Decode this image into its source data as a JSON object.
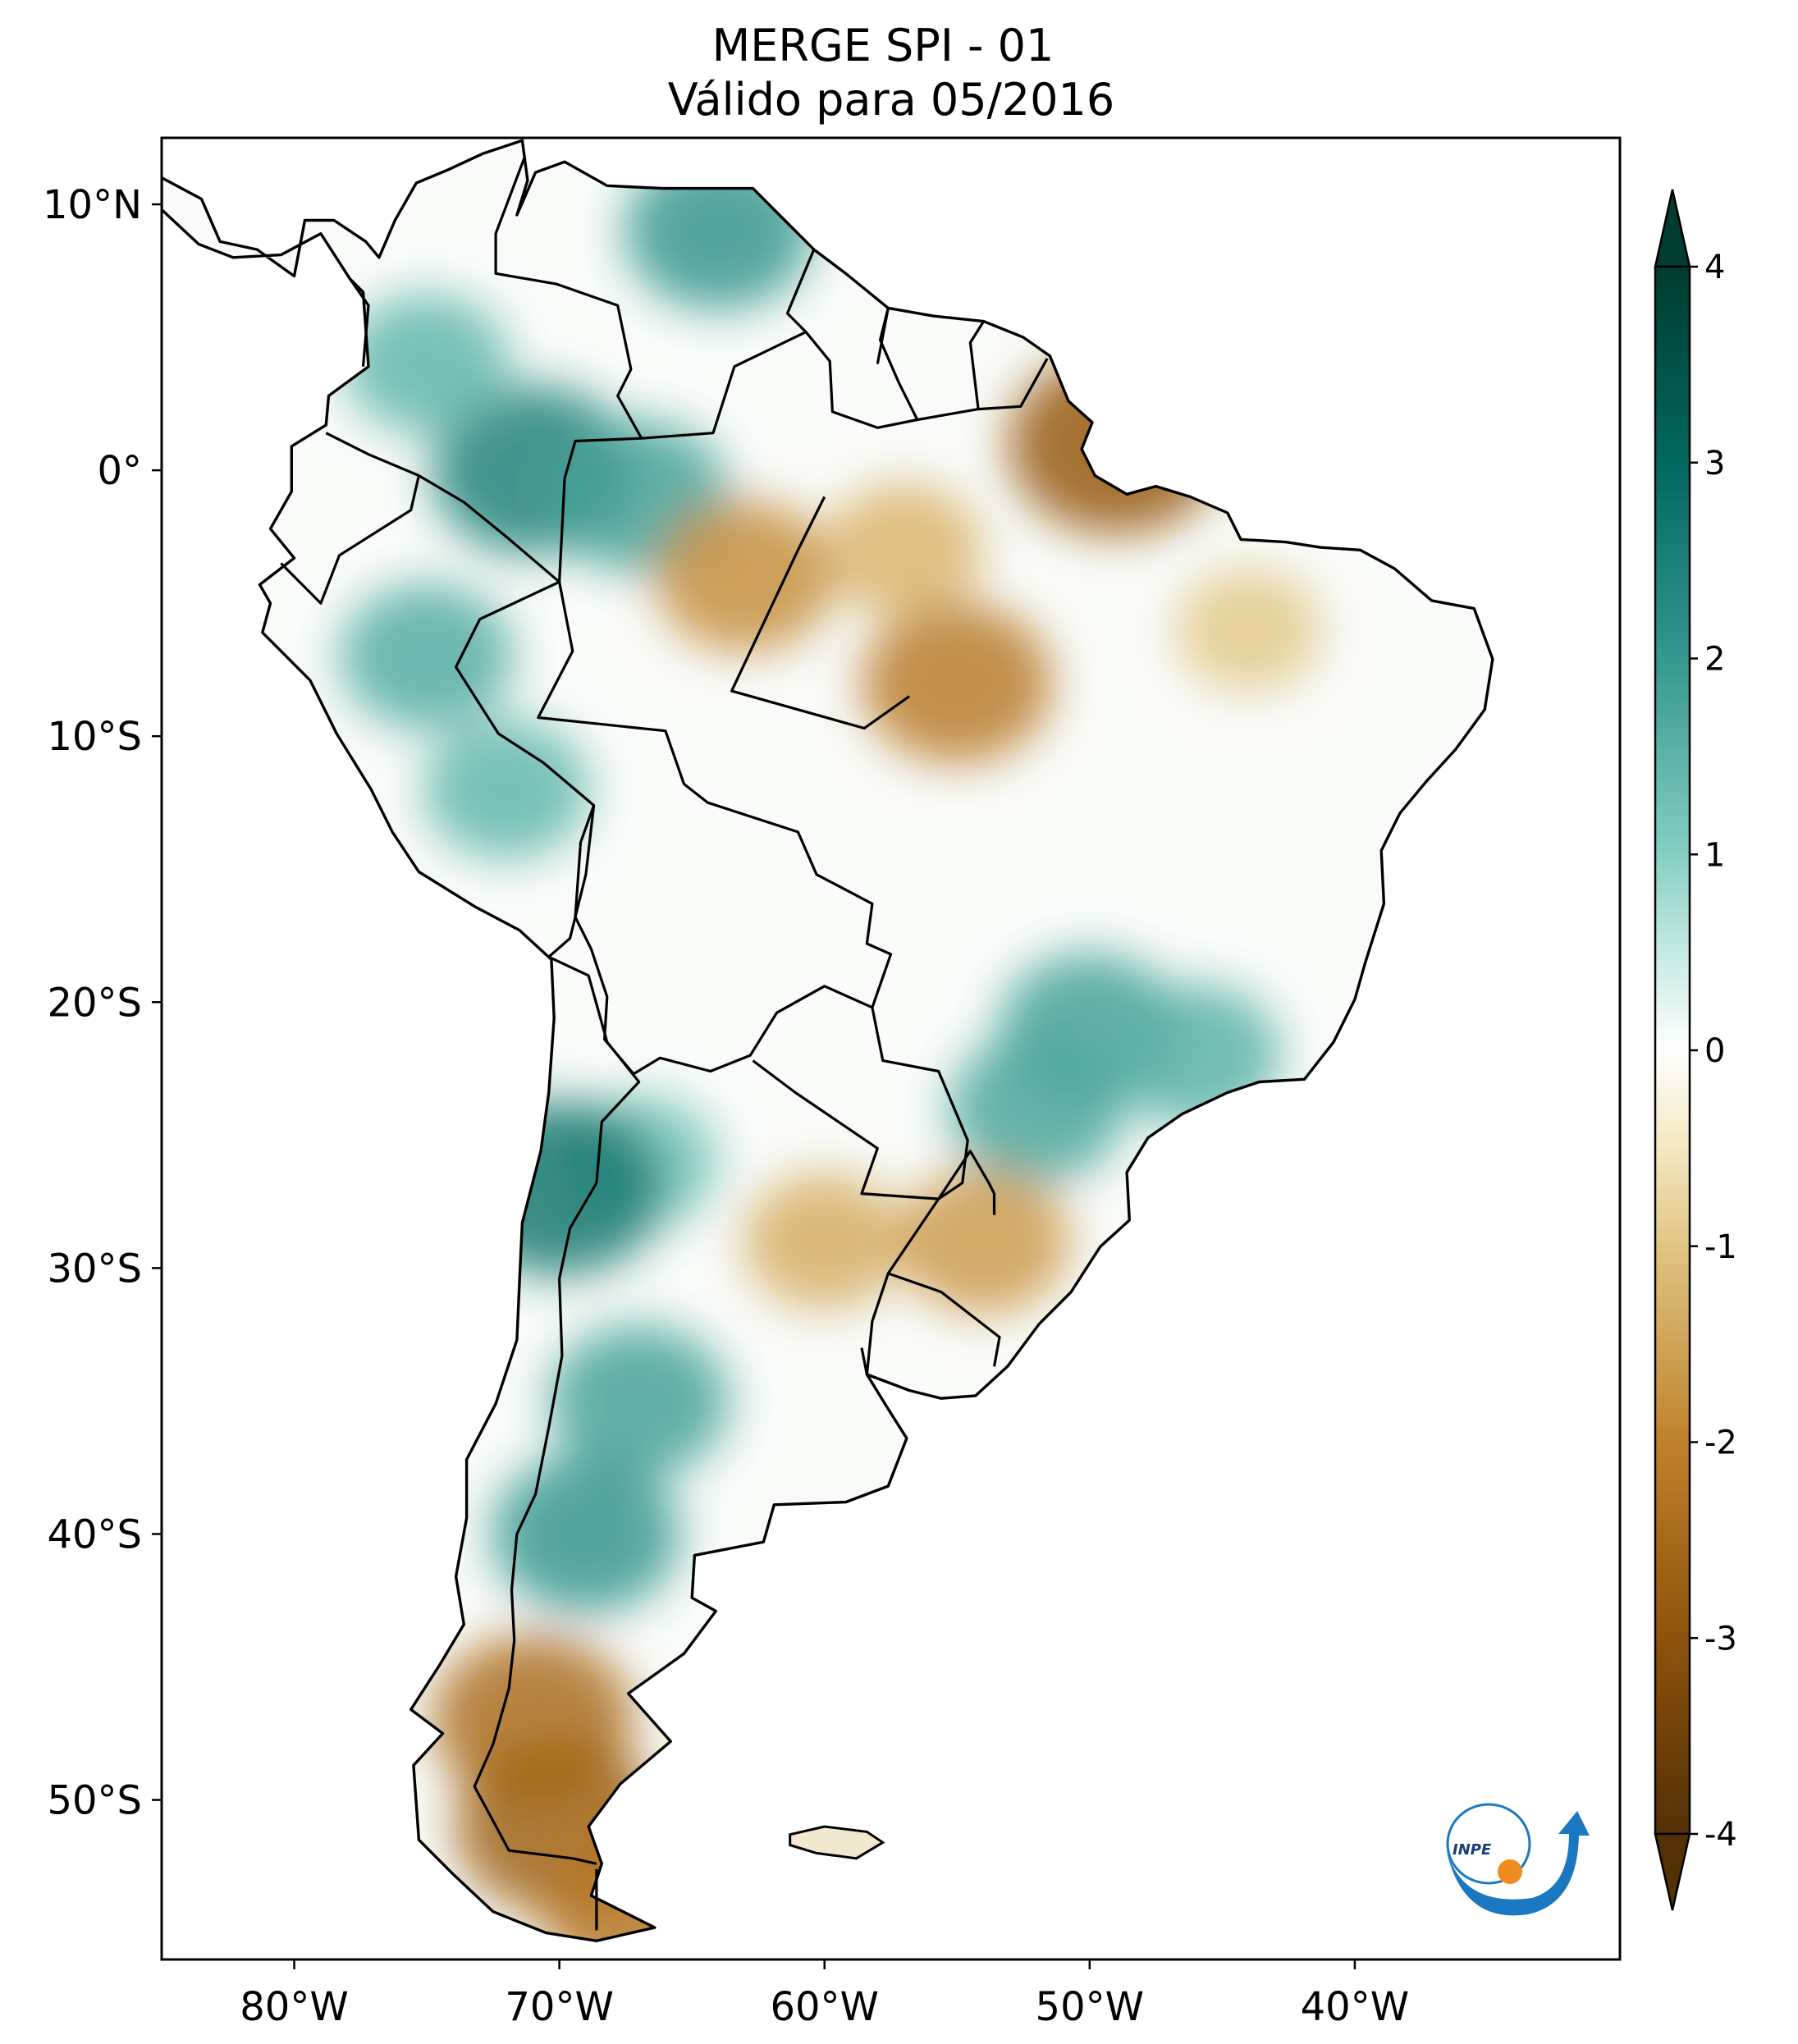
{
  "title": {
    "line1": "MERGE   SPI - 01",
    "line2": "Válido para 05/2016"
  },
  "map": {
    "region": "South America",
    "projection": "PlateCarree",
    "lon_range": [
      -85,
      -30
    ],
    "lat_range": [
      -56,
      12.5
    ],
    "x_ticks": [
      {
        "value": -80,
        "label": "80°W"
      },
      {
        "value": -70,
        "label": "70°W"
      },
      {
        "value": -60,
        "label": "60°W"
      },
      {
        "value": -50,
        "label": "50°W"
      },
      {
        "value": -40,
        "label": "40°W"
      }
    ],
    "y_ticks": [
      {
        "value": 10,
        "label": "10°N"
      },
      {
        "value": 0,
        "label": "0°"
      },
      {
        "value": -10,
        "label": "10°S"
      },
      {
        "value": -20,
        "label": "20°S"
      },
      {
        "value": -30,
        "label": "30°S"
      },
      {
        "value": -40,
        "label": "40°S"
      },
      {
        "value": -50,
        "label": "50°S"
      }
    ]
  },
  "chart_data": {
    "type": "heatmap",
    "variable": "SPI - 01",
    "colormap": "BrBG",
    "colorbar": {
      "min": -4,
      "max": 4,
      "extend": "both",
      "ticks": [
        {
          "value": 4,
          "label": "4"
        },
        {
          "value": 3,
          "label": "3"
        },
        {
          "value": 2,
          "label": "2"
        },
        {
          "value": 1,
          "label": "1"
        },
        {
          "value": 0,
          "label": "0"
        },
        {
          "value": -1,
          "label": "-1"
        },
        {
          "value": -2,
          "label": "-2"
        },
        {
          "value": -3,
          "label": "-3"
        },
        {
          "value": -4,
          "label": "-4"
        }
      ]
    },
    "regional_values": [
      {
        "lon": -64,
        "lat": 9,
        "spi": 2.0
      },
      {
        "lon": -71,
        "lat": 0,
        "spi": 2.4
      },
      {
        "lon": -75,
        "lat": 4,
        "spi": 1.4
      },
      {
        "lon": -67,
        "lat": -1,
        "spi": 1.8
      },
      {
        "lon": -75,
        "lat": -7,
        "spi": 1.6
      },
      {
        "lon": -72,
        "lat": -12,
        "spi": 1.4
      },
      {
        "lon": -63,
        "lat": -4,
        "spi": -1.8
      },
      {
        "lon": -55,
        "lat": -8,
        "spi": -2.1
      },
      {
        "lon": -49,
        "lat": 1,
        "spi": -2.8
      },
      {
        "lon": -57,
        "lat": -3,
        "spi": -1.2
      },
      {
        "lon": -44,
        "lat": -6,
        "spi": -0.9
      },
      {
        "lon": -50,
        "lat": -21,
        "spi": 1.8
      },
      {
        "lon": -46,
        "lat": -22,
        "spi": 1.5
      },
      {
        "lon": -52,
        "lat": -24,
        "spi": 1.7
      },
      {
        "lon": -67,
        "lat": -26,
        "spi": 1.2
      },
      {
        "lon": -70,
        "lat": -27,
        "spi": 2.6
      },
      {
        "lon": -60,
        "lat": -29,
        "spi": -1.3
      },
      {
        "lon": -54,
        "lat": -29,
        "spi": -1.6
      },
      {
        "lon": -67,
        "lat": -35,
        "spi": 1.8
      },
      {
        "lon": -69,
        "lat": -40,
        "spi": 2.0
      },
      {
        "lon": -71,
        "lat": -47,
        "spi": -2.4
      },
      {
        "lon": -70,
        "lat": -51,
        "spi": -2.6
      },
      {
        "lon": -67,
        "lat": -54,
        "spi": -2.2
      }
    ]
  },
  "logo": {
    "text": "INPE",
    "colors": {
      "ring": "#1a78c2",
      "dot": "#f08c1e",
      "arrow": "#1a78c2"
    }
  }
}
